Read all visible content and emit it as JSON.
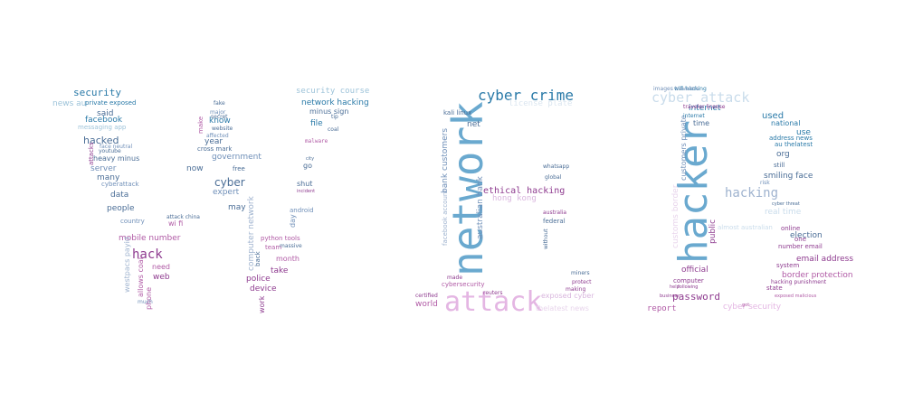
{
  "words": [
    {
      "t": "security",
      "c": "#2a7aa8"
    },
    {
      "t": "said",
      "c": "#4a6d96"
    },
    {
      "t": "facebook",
      "c": "#2a7aa8"
    },
    {
      "t": "hacked",
      "c": "#4a6d96"
    },
    {
      "t": "server",
      "c": "#6f8fb8"
    },
    {
      "t": "many",
      "c": "#4a6d96"
    },
    {
      "t": "data",
      "c": "#4a6d96"
    },
    {
      "t": "people",
      "c": "#4a6d96"
    },
    {
      "t": "hack",
      "c": "#8e3b8f"
    },
    {
      "t": "mobile number",
      "c": "#b05aa5"
    },
    {
      "t": "need",
      "c": "#b05aa5"
    },
    {
      "t": "web",
      "c": "#8e3b8f"
    },
    {
      "t": "wi fi",
      "c": "#b05aa5"
    },
    {
      "t": "country",
      "c": "#6f8fb8"
    },
    {
      "t": "cyberattack",
      "c": "#6f8fb8"
    },
    {
      "t": "heavy minus",
      "c": "#4a6d96"
    },
    {
      "t": "private exposed",
      "c": "#2a7aa8"
    },
    {
      "t": "news au",
      "c": "#9dc3d9"
    },
    {
      "t": "messaging app",
      "c": "#9dc3d9"
    },
    {
      "t": "cyber",
      "c": "#4a6d96"
    },
    {
      "t": "expert",
      "c": "#6f8fb8"
    },
    {
      "t": "may",
      "c": "#4a6d96"
    },
    {
      "t": "government",
      "c": "#6f8fb8"
    },
    {
      "t": "year",
      "c": "#4a6d96"
    },
    {
      "t": "know",
      "c": "#2a7aa8"
    },
    {
      "t": "now",
      "c": "#4a6d96"
    },
    {
      "t": "free",
      "c": "#4a6d96"
    },
    {
      "t": "cross mark",
      "c": "#4a6d96"
    },
    {
      "t": "computer network",
      "c": "#9fb3cf"
    },
    {
      "t": "police",
      "c": "#8e3b8f"
    },
    {
      "t": "device",
      "c": "#8e3b8f"
    },
    {
      "t": "take",
      "c": "#8e3b8f"
    },
    {
      "t": "month",
      "c": "#b05aa5"
    },
    {
      "t": "team",
      "c": "#b05aa5"
    },
    {
      "t": "python tools",
      "c": "#b05aa5"
    },
    {
      "t": "work",
      "c": "#8e3b8f"
    },
    {
      "t": "security course",
      "c": "#9dc3d9"
    },
    {
      "t": "network hacking",
      "c": "#2a7aa8"
    },
    {
      "t": "minus sign",
      "c": "#4a6d96"
    },
    {
      "t": "file",
      "c": "#2a7aa8"
    },
    {
      "t": "go",
      "c": "#4a6d96"
    },
    {
      "t": "shut",
      "c": "#4a6d96"
    },
    {
      "t": "day",
      "c": "#6f8fb8"
    },
    {
      "t": "android",
      "c": "#6f8fb8"
    },
    {
      "t": "network",
      "c": "#6aa9cf"
    },
    {
      "t": "cyber crime",
      "c": "#2a7aa8"
    },
    {
      "t": "license plate",
      "c": "#dbe6f0"
    },
    {
      "t": "kali linux",
      "c": "#4a6d96"
    },
    {
      "t": "net",
      "c": "#4a6d96"
    },
    {
      "t": "ethical hacking",
      "c": "#8e3b8f"
    },
    {
      "t": "hong kong",
      "c": "#d9b6de"
    },
    {
      "t": "bank customers",
      "c": "#6f8fb8"
    },
    {
      "t": "australian bank",
      "c": "#6f8fb8"
    },
    {
      "t": "attack",
      "c": "#e4b6e3"
    },
    {
      "t": "world",
      "c": "#b05aa5"
    },
    {
      "t": "cybersecurity",
      "c": "#b05aa5"
    },
    {
      "t": "exposed cyber",
      "c": "#d9b6de"
    },
    {
      "t": "thelatest news",
      "c": "#e8d5ec"
    },
    {
      "t": "hacker",
      "c": "#6aa9cf"
    },
    {
      "t": "cyber attack",
      "c": "#c9dceb"
    },
    {
      "t": "internet",
      "c": "#2a7aa8"
    },
    {
      "t": "time",
      "c": "#4a6d96"
    },
    {
      "t": "customers private",
      "c": "#6f8fb8"
    },
    {
      "t": "hacking",
      "c": "#9fb3cf"
    },
    {
      "t": "real time",
      "c": "#c9dceb"
    },
    {
      "t": "used",
      "c": "#2a7aa8"
    },
    {
      "t": "national",
      "c": "#2a7aa8"
    },
    {
      "t": "use",
      "c": "#2a7aa8"
    },
    {
      "t": "address news",
      "c": "#2a7aa8"
    },
    {
      "t": "au thelatest",
      "c": "#2a7aa8"
    },
    {
      "t": "org",
      "c": "#4a6d96"
    },
    {
      "t": "still",
      "c": "#4a6d96"
    },
    {
      "t": "smiling face",
      "c": "#4a6d96"
    },
    {
      "t": "election",
      "c": "#4a6d96"
    },
    {
      "t": "one",
      "c": "#8e3b8f"
    },
    {
      "t": "online",
      "c": "#8e3b8f"
    },
    {
      "t": "number email",
      "c": "#8e3b8f"
    },
    {
      "t": "email address",
      "c": "#8e3b8f"
    },
    {
      "t": "system",
      "c": "#8e3b8f"
    },
    {
      "t": "border protection",
      "c": "#b05aa5"
    },
    {
      "t": "state",
      "c": "#8e3b8f"
    },
    {
      "t": "official",
      "c": "#8e3b8f"
    },
    {
      "t": "computer",
      "c": "#8e3b8f"
    },
    {
      "t": "password",
      "c": "#8e3b8f"
    },
    {
      "t": "cyber security",
      "c": "#e4b6e3"
    },
    {
      "t": "report",
      "c": "#b05aa5"
    },
    {
      "t": "customs border",
      "c": "#e8d5ec"
    },
    {
      "t": "public",
      "c": "#8e3b8f"
    },
    {
      "t": "almost australian",
      "c": "#c9dceb"
    },
    {
      "t": "westpacs payid",
      "c": "#9fb3cf"
    },
    {
      "t": "allows coal",
      "c": "#b05aa5"
    },
    {
      "t": "phone",
      "c": "#b05aa5"
    },
    {
      "t": "make",
      "c": "#b05aa5"
    },
    {
      "t": "back",
      "c": "#4a6d96"
    },
    {
      "t": "facebook account",
      "c": "#9fb3cf"
    },
    {
      "t": "attacks",
      "c": "#8e3b8f"
    },
    {
      "t": "fake",
      "c": "#4a6d96"
    },
    {
      "t": "major",
      "c": "#6f8fb8"
    },
    {
      "t": "secret",
      "c": "#4a6d96"
    },
    {
      "t": "website",
      "c": "#4a6d96"
    },
    {
      "t": "affected",
      "c": "#6f8fb8"
    },
    {
      "t": "face neutral",
      "c": "#6f8fb8"
    },
    {
      "t": "youtube",
      "c": "#4a6d96"
    },
    {
      "t": "attack china",
      "c": "#4a6d96"
    },
    {
      "t": "much",
      "c": "#6f8fb8"
    },
    {
      "t": "incident",
      "c": "#8e3b8f"
    },
    {
      "t": "massive",
      "c": "#4a6d96"
    },
    {
      "t": "malware",
      "c": "#b05aa5"
    },
    {
      "t": "coal",
      "c": "#4a6d96"
    },
    {
      "t": "tip",
      "c": "#4a6d96"
    },
    {
      "t": "city",
      "c": "#4a6d96"
    },
    {
      "t": "whatsapp",
      "c": "#4a6d96"
    },
    {
      "t": "global",
      "c": "#4a6d96"
    },
    {
      "t": "miners",
      "c": "#4a6d96"
    },
    {
      "t": "protect",
      "c": "#8e3b8f"
    },
    {
      "t": "making",
      "c": "#8e3b8f"
    },
    {
      "t": "certified",
      "c": "#8e3b8f"
    },
    {
      "t": "reuters",
      "c": "#8e3b8f"
    },
    {
      "t": "made",
      "c": "#8e3b8f"
    },
    {
      "t": "traveler license",
      "c": "#8e3b8f"
    },
    {
      "t": "internet",
      "c": "#2a7aa8"
    },
    {
      "t": "wifi hacking",
      "c": "#2a7aa8"
    },
    {
      "t": "images travelers",
      "c": "#6f8fb8"
    },
    {
      "t": "risk",
      "c": "#6f8fb8"
    },
    {
      "t": "cyber threat",
      "c": "#4a6d96"
    },
    {
      "t": "hacking punishment",
      "c": "#8e3b8f"
    },
    {
      "t": "exposed malicious",
      "c": "#b05aa5"
    },
    {
      "t": "following",
      "c": "#8e3b8f"
    },
    {
      "t": "business",
      "c": "#8e3b8f"
    },
    {
      "t": "help",
      "c": "#8e3b8f"
    },
    {
      "t": "got",
      "c": "#b05aa5"
    },
    {
      "t": "australia",
      "c": "#8e3b8f"
    },
    {
      "t": "federal",
      "c": "#4a6d96"
    },
    {
      "t": "without",
      "c": "#4a6d96"
    },
    {
      "t": "phishing",
      "c": "#4a6d96"
    }
  ]
}
